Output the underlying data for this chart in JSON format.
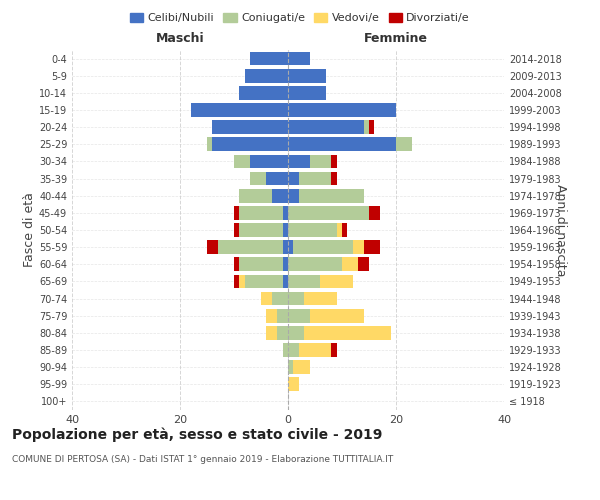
{
  "age_groups": [
    "100+",
    "95-99",
    "90-94",
    "85-89",
    "80-84",
    "75-79",
    "70-74",
    "65-69",
    "60-64",
    "55-59",
    "50-54",
    "45-49",
    "40-44",
    "35-39",
    "30-34",
    "25-29",
    "20-24",
    "15-19",
    "10-14",
    "5-9",
    "0-4"
  ],
  "birth_years": [
    "≤ 1918",
    "1919-1923",
    "1924-1928",
    "1929-1933",
    "1934-1938",
    "1939-1943",
    "1944-1948",
    "1949-1953",
    "1954-1958",
    "1959-1963",
    "1964-1968",
    "1969-1973",
    "1974-1978",
    "1979-1983",
    "1984-1988",
    "1989-1993",
    "1994-1998",
    "1999-2003",
    "2004-2008",
    "2009-2013",
    "2014-2018"
  ],
  "males": {
    "celibi": [
      0,
      0,
      0,
      0,
      0,
      0,
      0,
      1,
      1,
      1,
      1,
      1,
      3,
      4,
      7,
      14,
      14,
      18,
      9,
      8,
      7
    ],
    "coniugati": [
      0,
      0,
      0,
      1,
      2,
      2,
      3,
      7,
      8,
      12,
      8,
      8,
      6,
      3,
      3,
      1,
      0,
      0,
      0,
      0,
      0
    ],
    "vedovi": [
      0,
      0,
      0,
      0,
      2,
      2,
      2,
      1,
      0,
      0,
      0,
      0,
      0,
      0,
      0,
      0,
      0,
      0,
      0,
      0,
      0
    ],
    "divorziati": [
      0,
      0,
      0,
      0,
      0,
      0,
      0,
      1,
      1,
      2,
      1,
      1,
      0,
      0,
      0,
      0,
      0,
      0,
      0,
      0,
      0
    ]
  },
  "females": {
    "nubili": [
      0,
      0,
      0,
      0,
      0,
      0,
      0,
      0,
      0,
      1,
      0,
      0,
      2,
      2,
      4,
      20,
      14,
      20,
      7,
      7,
      4
    ],
    "coniugate": [
      0,
      0,
      1,
      2,
      3,
      4,
      3,
      6,
      10,
      11,
      9,
      15,
      12,
      6,
      4,
      3,
      1,
      0,
      0,
      0,
      0
    ],
    "vedove": [
      0,
      2,
      3,
      6,
      16,
      10,
      6,
      6,
      3,
      2,
      1,
      0,
      0,
      0,
      0,
      0,
      0,
      0,
      0,
      0,
      0
    ],
    "divorziate": [
      0,
      0,
      0,
      1,
      0,
      0,
      0,
      0,
      2,
      3,
      1,
      2,
      0,
      1,
      1,
      0,
      1,
      0,
      0,
      0,
      0
    ]
  },
  "color_celibi": "#4472C4",
  "color_coniugati": "#b3cc99",
  "color_vedovi": "#FFD966",
  "color_divorziati": "#C00000",
  "title": "Popolazione per età, sesso e stato civile - 2019",
  "subtitle": "COMUNE DI PERTOSA (SA) - Dati ISTAT 1° gennaio 2019 - Elaborazione TUTTITALIA.IT",
  "ylabel_left": "Fasce di età",
  "ylabel_right": "Anni di nascita",
  "xlabel_left": "Maschi",
  "xlabel_right": "Femmine",
  "xlim": 40,
  "bg_color": "#ffffff",
  "grid_color": "#cccccc"
}
